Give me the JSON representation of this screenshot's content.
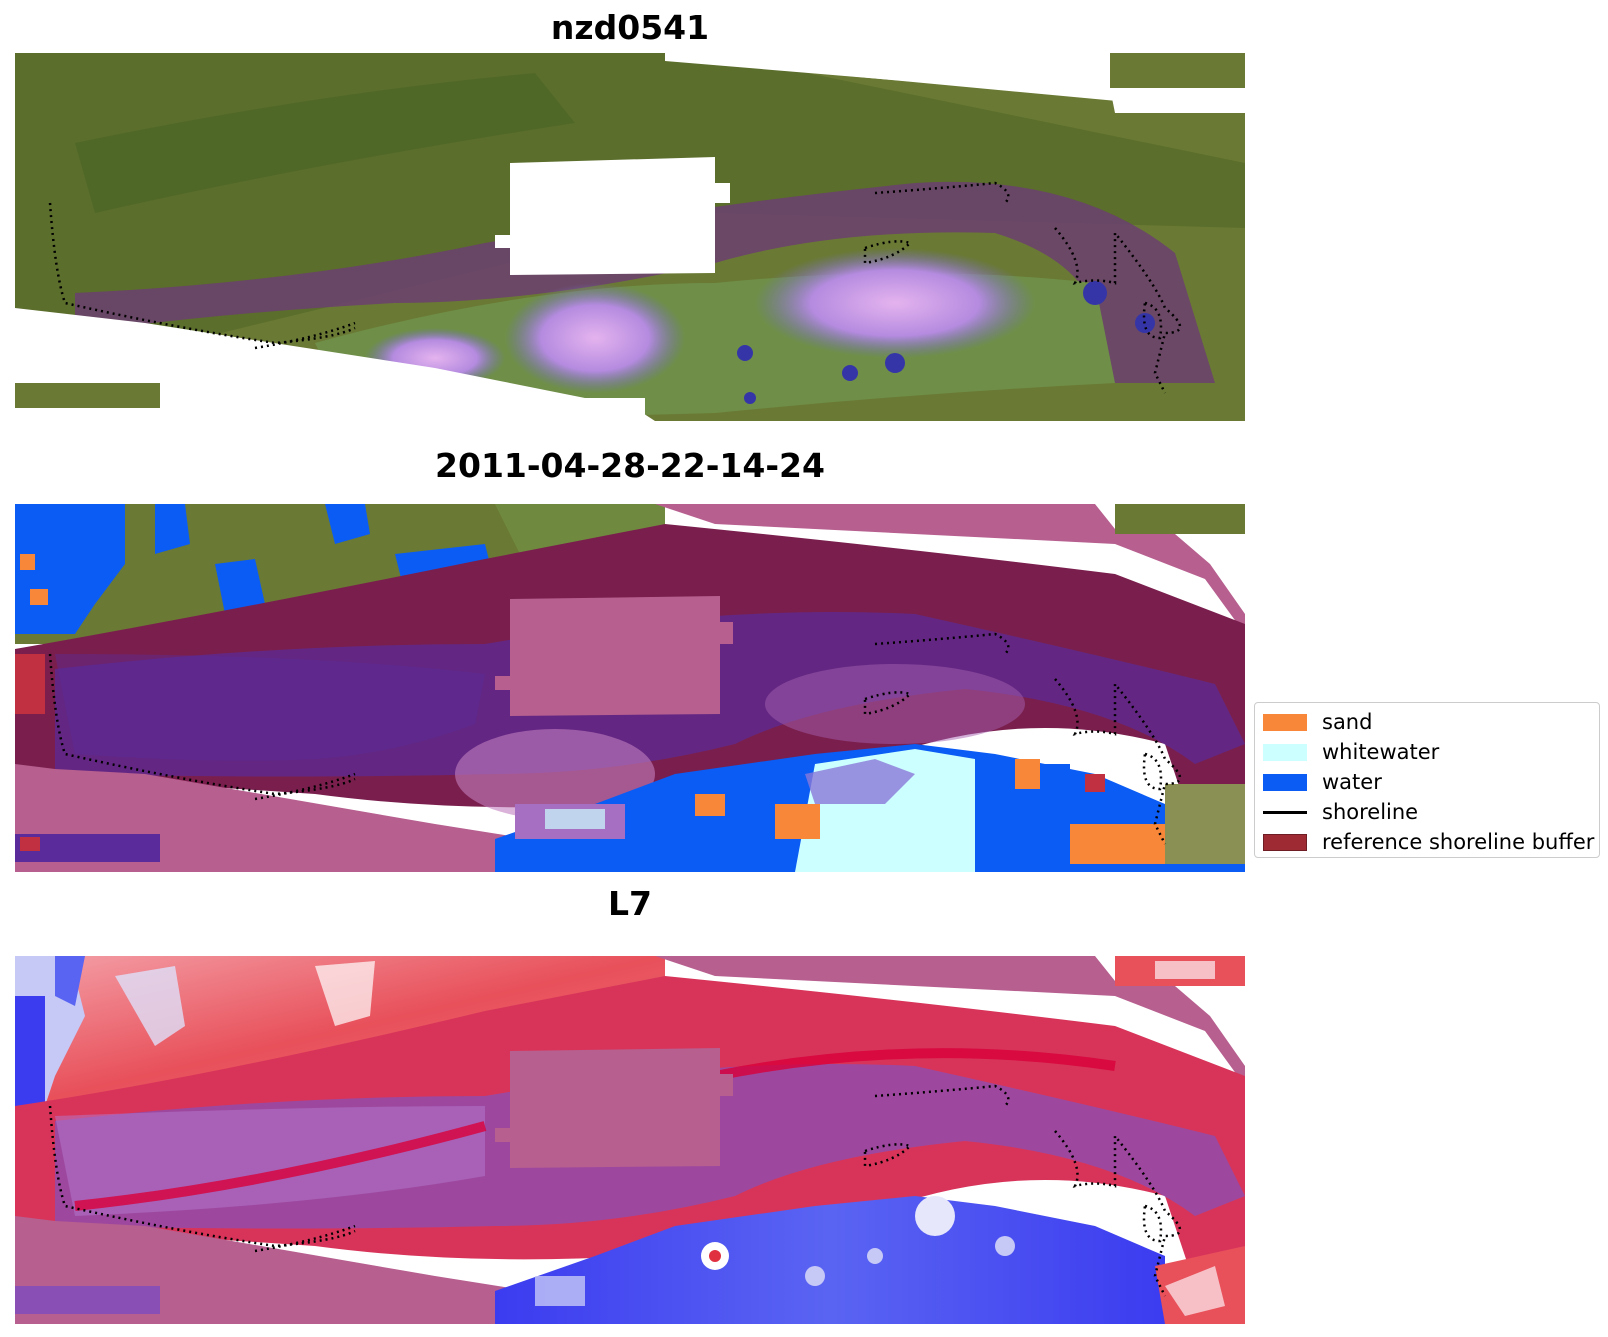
{
  "panels": [
    {
      "title": "nzd0541"
    },
    {
      "title": "2011-04-28-22-14-24"
    },
    {
      "title": "L7"
    }
  ],
  "legend": {
    "items": [
      {
        "label": "sand",
        "color": "#f9873a",
        "kind": "patch"
      },
      {
        "label": "whitewater",
        "color": "#ccffff",
        "kind": "patch"
      },
      {
        "label": "water",
        "color": "#0a5cf5",
        "kind": "patch"
      },
      {
        "label": "shoreline",
        "color": "#000000",
        "kind": "line"
      },
      {
        "label": "reference shoreline buffer",
        "color": "#9e2a33",
        "kind": "patch"
      }
    ]
  },
  "colors": {
    "vegetation": "#6a7a34",
    "vegetation_dark": "#3f5a22",
    "grass_green": "#7e9a4a",
    "estuary_purple": "#6a3f82",
    "shallow_violet": "#8a78d8",
    "pink_flat": "#c590d8",
    "buffer_mask": "#b75f8f",
    "dark_maroon": "#7a1f4d",
    "indigo": "#5a2b9a",
    "water": "#0a5cf5",
    "whitewater": "#ccffff",
    "sand": "#f9873a",
    "index_red": "#e03040",
    "index_blue": "#3b3cf0",
    "index_purple": "#8a4fb5"
  }
}
